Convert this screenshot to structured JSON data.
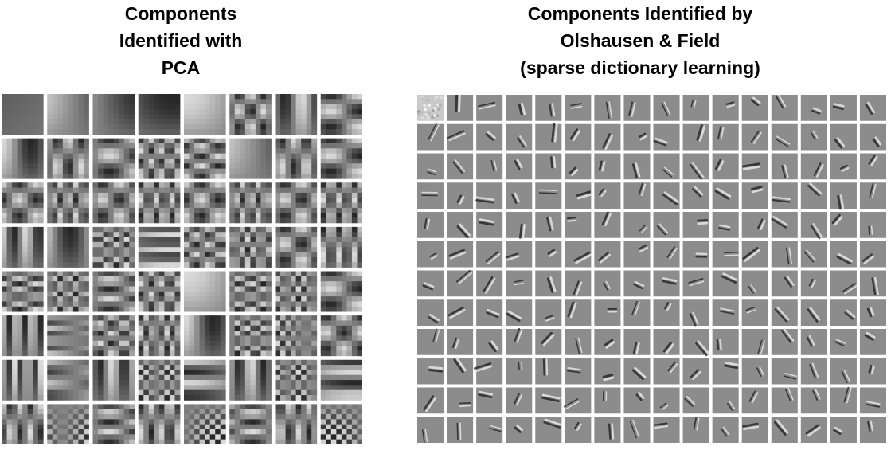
{
  "left_panel": {
    "title_lines": [
      "Components",
      "Identified with",
      "PCA"
    ],
    "grid": {
      "rows": 8,
      "cols": 8
    }
  },
  "right_panel": {
    "title_lines": [
      "Components Identified by",
      "Olshausen & Field",
      "(sparse dictionary learning)"
    ],
    "grid": {
      "rows": 12,
      "cols": 16
    }
  },
  "colors": {
    "background": "#ffffff",
    "tile_gray": "#8c8c8c",
    "dark": "#2a2a2a",
    "light": "#e6e6e6"
  }
}
